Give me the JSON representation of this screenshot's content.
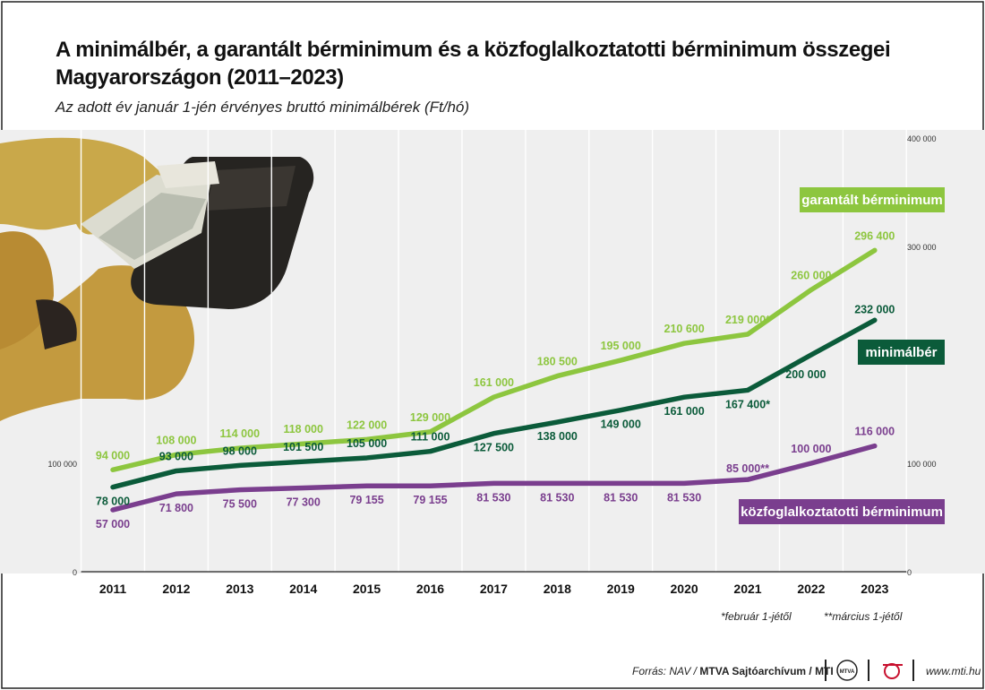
{
  "title": "A minimálbér, a garantált bérminimum és a közfoglalkoztatotti bérminimum összegei Magyarországon (2011–2023)",
  "subtitle": "Az adott év január 1-jén érvényes bruttó minimálbérek (Ft/hó)",
  "colors": {
    "garantalt": "#8dc63f",
    "minimalber": "#0b5b3a",
    "kozfog": "#7a3e8e",
    "grid": "#d9d9d9",
    "bg": "#efefef"
  },
  "chart_data": {
    "type": "line",
    "x": [
      "2011",
      "2012",
      "2013",
      "2014",
      "2015",
      "2016",
      "2017",
      "2018",
      "2019",
      "2020",
      "2021",
      "2022",
      "2023"
    ],
    "ylim": [
      0,
      400000
    ],
    "y_ticks_left": [
      "0",
      "100 000"
    ],
    "y_ticks_right": [
      "0",
      "100 000",
      "300 000",
      "400 000"
    ],
    "series": [
      {
        "name": "garantált bérminimum",
        "key": "garantalt",
        "values": [
          94000,
          108000,
          114000,
          118000,
          122000,
          129000,
          161000,
          180500,
          195000,
          210600,
          219000,
          260000,
          296400
        ],
        "labels": [
          "94 000",
          "108 000",
          "114 000",
          "118 000",
          "122 000",
          "129 000",
          "161 000",
          "180 500",
          "195 000",
          "210 600",
          "219 000*",
          "260 000",
          "296 400"
        ]
      },
      {
        "name": "minimálbér",
        "key": "minimalber",
        "values": [
          78000,
          93000,
          98000,
          101500,
          105000,
          111000,
          127500,
          138000,
          149000,
          161000,
          167400,
          200000,
          232000
        ],
        "labels": [
          "78 000",
          "93 000",
          "98 000",
          "101 500",
          "105 000",
          "111 000",
          "127 500",
          "138 000",
          "149 000",
          "161 000",
          "167 400*",
          "200 000",
          "232 000"
        ]
      },
      {
        "name": "közfoglalkoztatotti bérminimum",
        "key": "kozfog",
        "values": [
          57000,
          71800,
          75500,
          77300,
          79155,
          79155,
          81530,
          81530,
          81530,
          81530,
          85000,
          100000,
          116000
        ],
        "labels": [
          "57 000",
          "71 800",
          "75 500",
          "77 300",
          "79 155",
          "79 155",
          "81 530",
          "81 530",
          "81 530",
          "81 530",
          "85 000**",
          "100 000",
          "116 000"
        ]
      }
    ],
    "notes": [
      "*február 1-jétől",
      "**március 1-jétől"
    ],
    "grid": true
  },
  "footer": {
    "source_prefix": "Forrás: NAV /",
    "source_bold": "MTVA Sajtóarchívum / MTI",
    "logo_mtva": "MTVA",
    "url": "www.mti.hu"
  }
}
